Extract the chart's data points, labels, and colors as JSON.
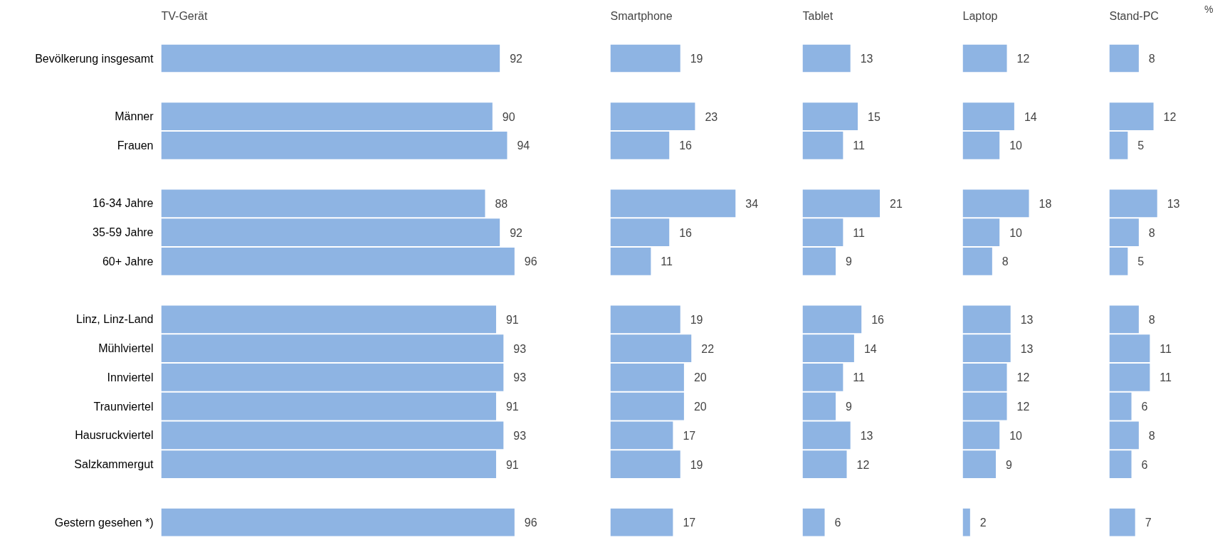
{
  "chart_data": [
    {
      "type": "bar",
      "orientation": "horizontal",
      "title": "TV-Gerät",
      "data_labels": true,
      "grid": false,
      "tick_labels": "y",
      "color": "#8eb4e3",
      "categories": [
        "Bevölkerung insgesamt",
        null,
        "Männer",
        "Frauen",
        null,
        "16-34 Jahre",
        "35-59 Jahre",
        "60+ Jahre",
        null,
        "Linz, Linz-Land",
        "Mühlviertel",
        "Innviertel",
        "Traunviertel",
        "Hausruckviertel",
        "Salzkammergut",
        null,
        "Gestern gesehen *)"
      ],
      "values": [
        92,
        null,
        90,
        94,
        null,
        88,
        92,
        96,
        null,
        91,
        93,
        93,
        91,
        93,
        91,
        null,
        96
      ]
    },
    {
      "type": "bar",
      "orientation": "horizontal",
      "title": "Smartphone",
      "data_labels": true,
      "grid": false,
      "tick_labels": false,
      "color": "#8eb4e3",
      "values": [
        19,
        null,
        23,
        16,
        null,
        34,
        16,
        11,
        null,
        19,
        22,
        20,
        20,
        17,
        19,
        null,
        17
      ]
    },
    {
      "type": "bar",
      "orientation": "horizontal",
      "title": "Tablet",
      "data_labels": true,
      "grid": false,
      "tick_labels": false,
      "color": "#8eb4e3",
      "values": [
        13,
        null,
        15,
        11,
        null,
        21,
        11,
        9,
        null,
        16,
        14,
        11,
        9,
        13,
        12,
        null,
        6
      ]
    },
    {
      "type": "bar",
      "orientation": "horizontal",
      "title": "Laptop",
      "data_labels": true,
      "grid": false,
      "tick_labels": false,
      "color": "#8eb4e3",
      "values": [
        12,
        null,
        14,
        10,
        null,
        18,
        10,
        8,
        null,
        13,
        13,
        12,
        12,
        10,
        9,
        null,
        2
      ]
    },
    {
      "type": "bar",
      "orientation": "horizontal",
      "title": "Stand-PC",
      "data_labels": true,
      "grid": false,
      "tick_labels": false,
      "color": "#8eb4e3",
      "annotations": [
        "%"
      ],
      "values": [
        8,
        null,
        12,
        5,
        null,
        13,
        8,
        5,
        null,
        8,
        11,
        11,
        6,
        8,
        6,
        null,
        7
      ]
    }
  ]
}
